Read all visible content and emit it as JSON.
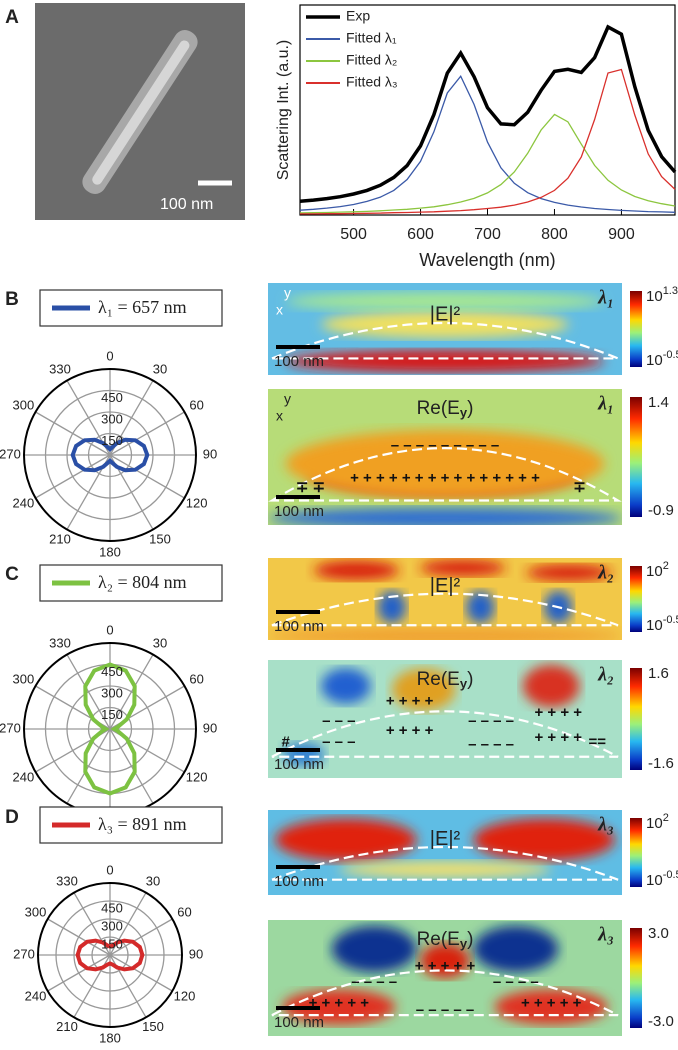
{
  "panel_labels": [
    "A",
    "B",
    "C",
    "D"
  ],
  "sem": {
    "scale_bar": "100 nm"
  },
  "chart_data": [
    {
      "type": "line",
      "x_label": "Wavelength (nm)",
      "y_label": "Scattering Int. (a.u.)",
      "x": [
        420,
        440,
        460,
        480,
        500,
        520,
        540,
        560,
        580,
        600,
        620,
        640,
        660,
        680,
        700,
        720,
        740,
        760,
        780,
        800,
        820,
        840,
        860,
        880,
        900,
        920,
        940,
        960,
        980
      ],
      "xlim": [
        420,
        980
      ],
      "xticks": [
        500,
        600,
        700,
        800,
        900
      ],
      "ylim": [
        0,
        1.1
      ],
      "legend": "upper left",
      "series": [
        {
          "name": "Exp",
          "color": "#000000",
          "values": [
            0.072,
            0.078,
            0.086,
            0.096,
            0.11,
            0.129,
            0.156,
            0.197,
            0.259,
            0.362,
            0.526,
            0.743,
            0.848,
            0.724,
            0.562,
            0.477,
            0.473,
            0.538,
            0.653,
            0.752,
            0.763,
            0.747,
            0.824,
            0.985,
            0.947,
            0.672,
            0.443,
            0.306,
            0.225
          ]
        },
        {
          "name": "Fitted λ₁",
          "color": "#3b5aa8",
          "values": [
            0.025,
            0.03,
            0.036,
            0.044,
            0.055,
            0.071,
            0.094,
            0.129,
            0.186,
            0.281,
            0.436,
            0.639,
            0.727,
            0.579,
            0.382,
            0.247,
            0.166,
            0.117,
            0.086,
            0.066,
            0.052,
            0.042,
            0.034,
            0.029,
            0.024,
            0.021,
            0.018,
            0.016,
            0.014
          ]
        },
        {
          "name": "Fitted λ₂",
          "color": "#8cc63f",
          "values": [
            0.011,
            0.012,
            0.013,
            0.015,
            0.017,
            0.019,
            0.022,
            0.026,
            0.03,
            0.036,
            0.043,
            0.054,
            0.068,
            0.087,
            0.116,
            0.159,
            0.225,
            0.323,
            0.445,
            0.527,
            0.488,
            0.371,
            0.26,
            0.182,
            0.131,
            0.097,
            0.075,
            0.059,
            0.047
          ]
        },
        {
          "name": "Fitted λ₃",
          "color": "#d9302c",
          "values": [
            0.006,
            0.006,
            0.007,
            0.007,
            0.008,
            0.009,
            0.01,
            0.012,
            0.013,
            0.015,
            0.017,
            0.02,
            0.023,
            0.028,
            0.034,
            0.041,
            0.052,
            0.068,
            0.092,
            0.129,
            0.193,
            0.304,
            0.5,
            0.744,
            0.762,
            0.524,
            0.32,
            0.201,
            0.134
          ]
        }
      ]
    },
    {
      "type": "polar",
      "title": "λ₁ = 657 nm",
      "color": "#2a4fa6",
      "theta": [
        0,
        15,
        30,
        45,
        60,
        75,
        90,
        105,
        120,
        135,
        150,
        165,
        180,
        195,
        210,
        225,
        240,
        255,
        270,
        285,
        300,
        315,
        330,
        345
      ],
      "values": [
        40,
        55,
        95,
        150,
        205,
        245,
        260,
        245,
        205,
        150,
        95,
        55,
        40,
        55,
        95,
        150,
        205,
        245,
        260,
        245,
        205,
        150,
        95,
        55
      ],
      "rlim": [
        0,
        600
      ],
      "rticks": [
        150,
        300,
        450
      ],
      "thetaticks": [
        0,
        30,
        60,
        90,
        120,
        150,
        180,
        210,
        240,
        270,
        300,
        330
      ]
    },
    {
      "type": "polar",
      "title": "λ₂ = 804 nm",
      "color": "#7dc242",
      "theta": [
        0,
        15,
        30,
        45,
        60,
        75,
        90,
        105,
        120,
        135,
        150,
        165,
        180,
        195,
        210,
        225,
        240,
        255,
        270,
        285,
        300,
        315,
        330,
        345
      ],
      "values": [
        450,
        422,
        345,
        240,
        135,
        58,
        30,
        58,
        135,
        240,
        345,
        422,
        450,
        422,
        345,
        240,
        135,
        58,
        30,
        58,
        135,
        240,
        345,
        422
      ],
      "rlim": [
        0,
        600
      ],
      "rticks": [
        150,
        300,
        450
      ],
      "thetaticks": [
        0,
        30,
        60,
        90,
        120,
        150,
        180,
        210,
        240,
        270,
        300,
        330
      ]
    },
    {
      "type": "polar",
      "title": "λ₃ = 891 nm",
      "color": "#d42a2a",
      "theta": [
        0,
        15,
        30,
        45,
        60,
        75,
        90,
        105,
        120,
        135,
        150,
        165,
        180,
        195,
        210,
        225,
        240,
        255,
        270,
        285,
        300,
        315,
        330,
        345
      ],
      "values": [
        70,
        83,
        120,
        170,
        220,
        257,
        270,
        257,
        220,
        170,
        120,
        83,
        70,
        83,
        120,
        170,
        220,
        257,
        270,
        257,
        220,
        170,
        120,
        83
      ],
      "rlim": [
        0,
        600
      ],
      "rticks": [
        150,
        300,
        450
      ],
      "thetaticks": [
        0,
        30,
        60,
        90,
        120,
        150,
        180,
        210,
        240,
        270,
        300,
        330
      ]
    }
  ],
  "maps": [
    {
      "quantity": "|E|²",
      "mode": "λ₁",
      "cbar_max": {
        "base": "10",
        "exp": "1.3"
      },
      "cbar_min": {
        "base": "10",
        "exp": "-0.5"
      },
      "scale_bar": "100 nm",
      "axes": [
        "y",
        "x"
      ]
    },
    {
      "quantity": {
        "main": "Re(E",
        "sub": "y",
        "end": ")"
      },
      "mode": "λ₁",
      "cbar_max": "1.4",
      "cbar_min": "-0.9",
      "scale_bar": "100 nm",
      "axes": [
        "y",
        "x"
      ],
      "charges": [
        "– – – – – – – – –",
        "+ + + + + + + + + + + + + + +",
        "∓ ∓",
        "∓"
      ]
    },
    {
      "quantity": "|E|²",
      "mode": "λ₂",
      "cbar_max": {
        "base": "10",
        "exp": "2"
      },
      "cbar_min": {
        "base": "10",
        "exp": "-0.5"
      },
      "scale_bar": "100 nm"
    },
    {
      "quantity": {
        "main": "Re(E",
        "sub": "y",
        "end": ")"
      },
      "mode": "λ₂",
      "cbar_max": "1.6",
      "cbar_min": "-1.6",
      "scale_bar": "100 nm",
      "charges": [
        "– – –",
        "– – –",
        "+ + + +",
        "+ + + +",
        "– – – –",
        "– – – –",
        "+ + + +",
        "+ + + +",
        "#",
        "=="
      ]
    },
    {
      "quantity": "|E|²",
      "mode": "λ₃",
      "cbar_max": {
        "base": "10",
        "exp": "2"
      },
      "cbar_min": {
        "base": "10",
        "exp": "-0.5"
      },
      "scale_bar": "100 nm"
    },
    {
      "quantity": {
        "main": "Re(E",
        "sub": "y",
        "end": ")"
      },
      "mode": "λ₃",
      "cbar_max": "3.0",
      "cbar_min": "-3.0",
      "scale_bar": "100 nm",
      "charges": [
        "+ + + + +",
        "– – – –",
        "– – – –",
        "+ + + + +",
        "+ + + + +",
        "– – – – –"
      ]
    }
  ]
}
